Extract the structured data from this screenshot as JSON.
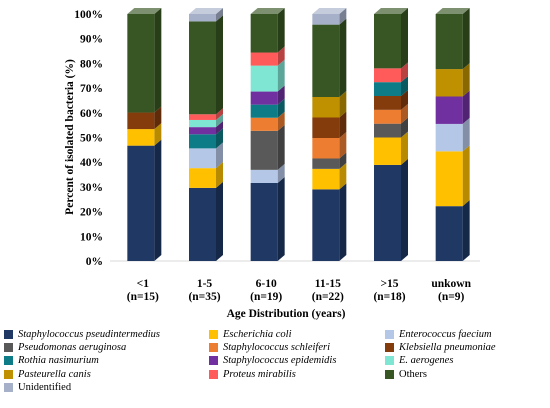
{
  "chart_data": {
    "type": "bar",
    "stacked": true,
    "percent": true,
    "style_3d": true,
    "ylabel": "Percent of isolated bacteria (%)",
    "xlabel": "Age Distribution  (years)",
    "ylim": [
      0,
      100
    ],
    "yticks": [
      "0%",
      "10%",
      "20%",
      "30%",
      "40%",
      "50%",
      "60%",
      "70%",
      "80%",
      "90%",
      "100%"
    ],
    "categories": [
      {
        "label": "<1",
        "n": "(n=15)"
      },
      {
        "label": "1-5",
        "n": "(n=35)"
      },
      {
        "label": "6-10",
        "n": "(n=19)"
      },
      {
        "label": "11-15",
        "n": "(n=22)"
      },
      {
        "label": ">15",
        "n": "(n=18)"
      },
      {
        "label": "unkown",
        "n": "(n=9)"
      }
    ],
    "series": [
      {
        "name": "Staphylococcus pseudintermedius",
        "italic": true,
        "color": "#1f3864",
        "values": [
          46.7,
          29.6,
          31.6,
          29.0,
          38.9,
          22.2
        ]
      },
      {
        "name": "Escherichia coli",
        "italic": true,
        "color": "#ffc000",
        "values": [
          6.7,
          8.0,
          0,
          8.3,
          11.1,
          22.2
        ]
      },
      {
        "name": "Enterococcus faecium",
        "italic": true,
        "color": "#b4c7e7",
        "values": [
          0,
          8.0,
          5.3,
          0,
          0,
          11.1
        ]
      },
      {
        "name": "Pseudomonas aeruginosa",
        "italic": true,
        "color": "#595959",
        "values": [
          0,
          0,
          15.8,
          4.2,
          5.6,
          0
        ]
      },
      {
        "name": "Staphylococcus schleiferi",
        "italic": true,
        "color": "#ed7d31",
        "values": [
          0,
          0,
          5.3,
          8.3,
          5.6,
          0
        ]
      },
      {
        "name": "Klebsiella pneumoniae",
        "italic": true,
        "color": "#843c0c",
        "values": [
          6.7,
          0,
          0,
          8.3,
          5.6,
          0
        ]
      },
      {
        "name": "Rothia nasimurium",
        "italic": true,
        "color": "#0e7c86",
        "values": [
          0,
          5.7,
          5.3,
          0,
          5.6,
          0
        ]
      },
      {
        "name": "Staphylococcus epidemidis",
        "italic": true,
        "color": "#7030a0",
        "values": [
          0,
          2.9,
          5.3,
          0,
          0,
          11.1
        ]
      },
      {
        "name": "E. aerogenes",
        "italic": true,
        "color": "#7fe6d4",
        "values": [
          0,
          2.9,
          10.5,
          0,
          0,
          0
        ]
      },
      {
        "name": "Pasteurella canis",
        "italic": true,
        "color": "#bf9000",
        "values": [
          0,
          0,
          0,
          8.3,
          0,
          11.1
        ]
      },
      {
        "name": "Proteus mirabilis",
        "italic": true,
        "color": "#ff5b5b",
        "values": [
          0,
          2.3,
          5.3,
          0,
          5.6,
          0
        ]
      },
      {
        "name": "Others",
        "italic": false,
        "color": "#375623",
        "values": [
          39.9,
          37.6,
          15.6,
          29.3,
          22.0,
          22.3
        ]
      },
      {
        "name": "Unidentified",
        "italic": false,
        "color": "#a6b1c9",
        "values": [
          0,
          3.0,
          0,
          4.3,
          0,
          0
        ]
      }
    ]
  }
}
